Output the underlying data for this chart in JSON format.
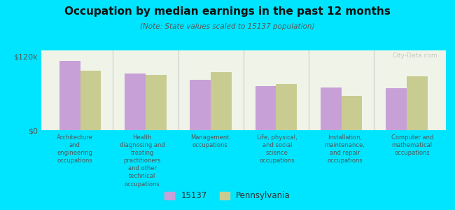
{
  "title": "Occupation by median earnings in the past 12 months",
  "subtitle": "(Note: State values scaled to 15137 population)",
  "background_color": "#00e5ff",
  "plot_bg_color": "#f0f4e8",
  "categories": [
    "Architecture\nand\nengineering\noccupations",
    "Health\ndiagnosing and\ntreating\npractitioners\nand other\ntechnical\noccupations",
    "Management\noccupations",
    "Life, physical,\nand social\nscience\noccupations",
    "Installation,\nmaintenance,\nand repair\noccupations",
    "Computer and\nmathematical\noccupations"
  ],
  "values_15137": [
    113000,
    92000,
    82000,
    72000,
    70000,
    68000
  ],
  "values_pennsylvania": [
    97000,
    90000,
    95000,
    75000,
    56000,
    88000
  ],
  "ylim": [
    0,
    130000
  ],
  "yticks": [
    0,
    120000
  ],
  "ytick_labels": [
    "$0",
    "$120k"
  ],
  "color_15137": "#c8a0d8",
  "color_pennsylvania": "#c8cc90",
  "legend_entries": [
    "15137",
    "Pennsylvania"
  ],
  "watermark": "City-Data.com",
  "bar_width": 0.32
}
